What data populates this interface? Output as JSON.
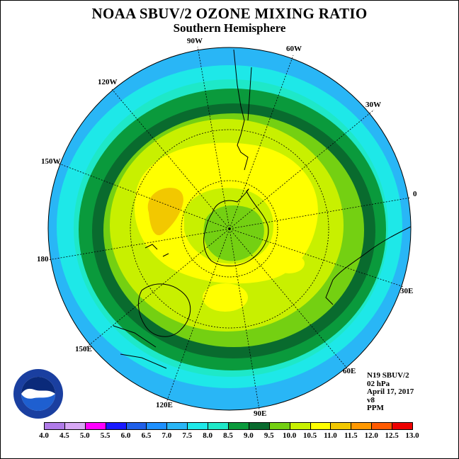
{
  "title": "NOAA SBUV/2 OZONE MIXING RATIO",
  "subtitle": "Southern Hemisphere",
  "meridian_labels": [
    "90W",
    "60W",
    "30W",
    "0",
    "30E",
    "60E",
    "90E",
    "120E",
    "150E",
    "180",
    "150W",
    "120W"
  ],
  "info": {
    "instrument": "N19 SBUV/2",
    "level": "02 hPa",
    "date": "April 17, 2017",
    "version": "v8",
    "units": "PPM"
  },
  "logo_text": "NOAA",
  "colors": {
    "c4_0": "#b07be8",
    "c4_5": "#d8a8f5",
    "c5_0": "#ff00ff",
    "c5_5": "#1a1aff",
    "c6_0": "#1f5fe8",
    "c6_5": "#1e90ff",
    "c7_0": "#29b6f6",
    "c7_5": "#1ee8e8",
    "c8_0": "#1ee8c8",
    "c8_5": "#0a9a3c",
    "c9_0": "#096b2e",
    "c9_5": "#74d012",
    "c10_0": "#c8f000",
    "c10_5": "#ffff00",
    "c11_0": "#f2c800",
    "c11_5": "#ff9800",
    "c12_0": "#ff5a00",
    "c12_5": "#ee0000",
    "c13_0": "#8b5a2b"
  },
  "legend": {
    "ticks": [
      "4.0",
      "4.5",
      "5.0",
      "5.5",
      "6.0",
      "6.5",
      "7.0",
      "7.5",
      "8.0",
      "8.5",
      "9.0",
      "9.5",
      "10.0",
      "10.5",
      "11.0",
      "11.5",
      "12.0",
      "12.5",
      "13.0"
    ],
    "colors": [
      "#b07be8",
      "#d8a8f5",
      "#ff00ff",
      "#1a1aff",
      "#1f5fe8",
      "#1e90ff",
      "#29b6f6",
      "#1ee8e8",
      "#1ee8c8",
      "#0a9a3c",
      "#096b2e",
      "#74d012",
      "#c8f000",
      "#ffff00",
      "#f2c800",
      "#ff9800",
      "#ff5a00",
      "#ee0000"
    ]
  }
}
